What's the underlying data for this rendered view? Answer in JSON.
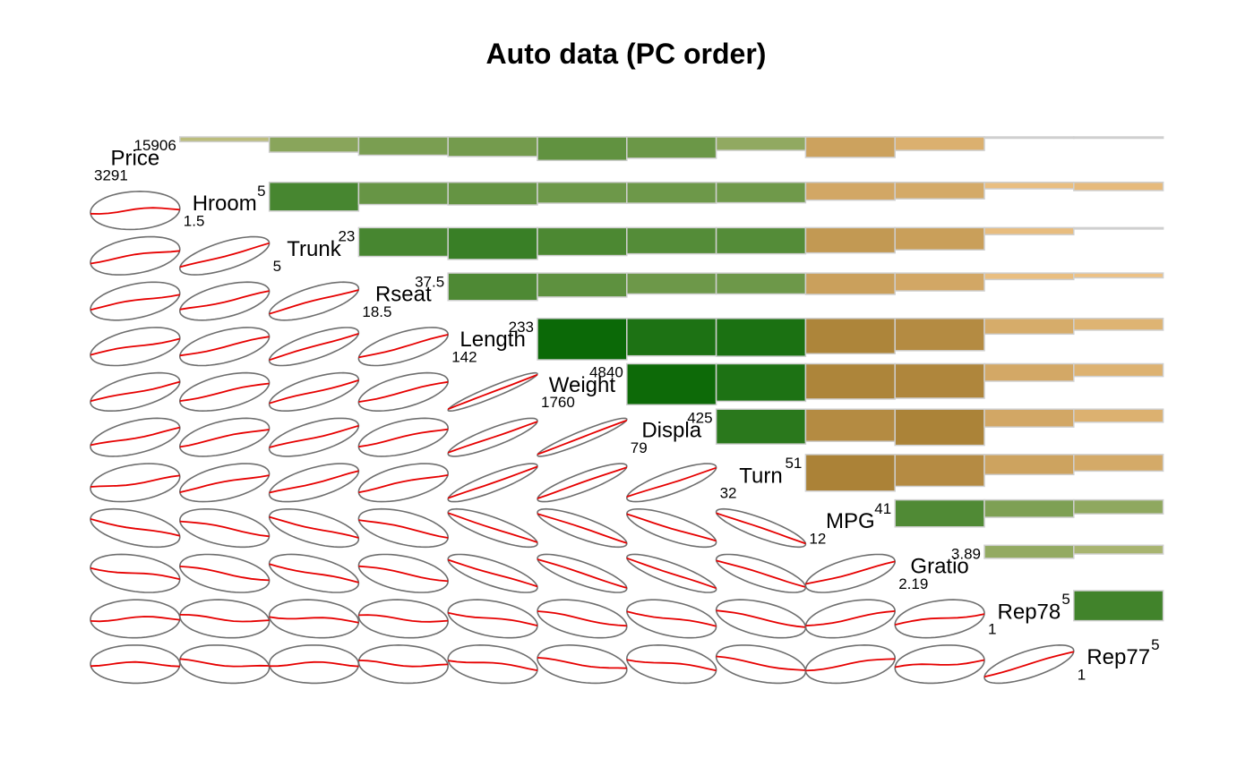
{
  "chart_data": {
    "type": "corrgram",
    "title": "Auto data (PC order)",
    "variables": [
      "Price",
      "Hroom",
      "Trunk",
      "Rseat",
      "Length",
      "Weight",
      "Displa",
      "Turn",
      "MPG",
      "Gratio",
      "Rep78",
      "Rep77"
    ],
    "ranges": [
      {
        "min": "3291",
        "max": "15906"
      },
      {
        "min": "1.5",
        "max": "5"
      },
      {
        "min": "5",
        "max": "23"
      },
      {
        "min": "18.5",
        "max": "37.5"
      },
      {
        "min": "142",
        "max": "233"
      },
      {
        "min": "1760",
        "max": "4840"
      },
      {
        "min": "79",
        "max": "425"
      },
      {
        "min": "32",
        "max": "51"
      },
      {
        "min": "12",
        "max": "41"
      },
      {
        "min": "2.19",
        "max": "3.89"
      },
      {
        "min": "1",
        "max": "5"
      },
      {
        "min": "1",
        "max": "5"
      }
    ],
    "correlations": [
      [
        1.0,
        0.11,
        0.35,
        0.42,
        0.45,
        0.54,
        0.49,
        0.31,
        -0.47,
        -0.31,
        0.03,
        -0.01
      ],
      [
        0.11,
        1.0,
        0.66,
        0.51,
        0.52,
        0.48,
        0.48,
        0.47,
        -0.41,
        -0.38,
        -0.15,
        -0.19
      ],
      [
        0.35,
        0.66,
        1.0,
        0.66,
        0.73,
        0.64,
        0.6,
        0.6,
        -0.58,
        -0.51,
        -0.16,
        -0.01
      ],
      [
        0.42,
        0.51,
        0.66,
        1.0,
        0.63,
        0.55,
        0.48,
        0.48,
        -0.49,
        -0.41,
        -0.15,
        -0.11
      ],
      [
        0.45,
        0.52,
        0.73,
        0.63,
        1.0,
        0.95,
        0.86,
        0.87,
        -0.81,
        -0.74,
        -0.36,
        -0.27
      ],
      [
        0.54,
        0.48,
        0.64,
        0.55,
        0.95,
        1.0,
        0.94,
        0.86,
        -0.81,
        -0.79,
        -0.4,
        -0.29
      ],
      [
        0.49,
        0.48,
        0.6,
        0.48,
        0.86,
        0.94,
        1.0,
        0.8,
        -0.74,
        -0.83,
        -0.41,
        -0.3
      ],
      [
        0.31,
        0.47,
        0.6,
        0.48,
        0.87,
        0.86,
        0.8,
        1.0,
        -0.84,
        -0.73,
        -0.46,
        -0.38
      ],
      [
        -0.47,
        -0.41,
        -0.58,
        -0.49,
        -0.81,
        -0.81,
        -0.74,
        -0.84,
        1.0,
        0.62,
        0.4,
        0.32
      ],
      [
        -0.31,
        -0.38,
        -0.51,
        -0.41,
        -0.74,
        -0.79,
        -0.83,
        -0.73,
        0.62,
        1.0,
        0.3,
        0.2
      ],
      [
        0.03,
        -0.15,
        -0.16,
        -0.15,
        -0.36,
        -0.4,
        -0.41,
        -0.46,
        0.4,
        0.3,
        1.0,
        0.69
      ],
      [
        -0.01,
        -0.19,
        -0.01,
        -0.11,
        -0.27,
        -0.29,
        -0.3,
        -0.38,
        0.32,
        0.2,
        0.69,
        1.0
      ]
    ],
    "upper_panel": "bars",
    "lower_panel": "ellipse with loess smooth",
    "diagonal_panel": "variable name with min and max",
    "colors": {
      "positive_strong": "#006400",
      "positive_weak": "#d2c88c",
      "negative_strong": "#9c7426",
      "negative_weak": "#f7cb90",
      "ellipse": "#6e6e6e",
      "smooth": "#e60000",
      "bar_border": "#cfcfcf"
    }
  }
}
